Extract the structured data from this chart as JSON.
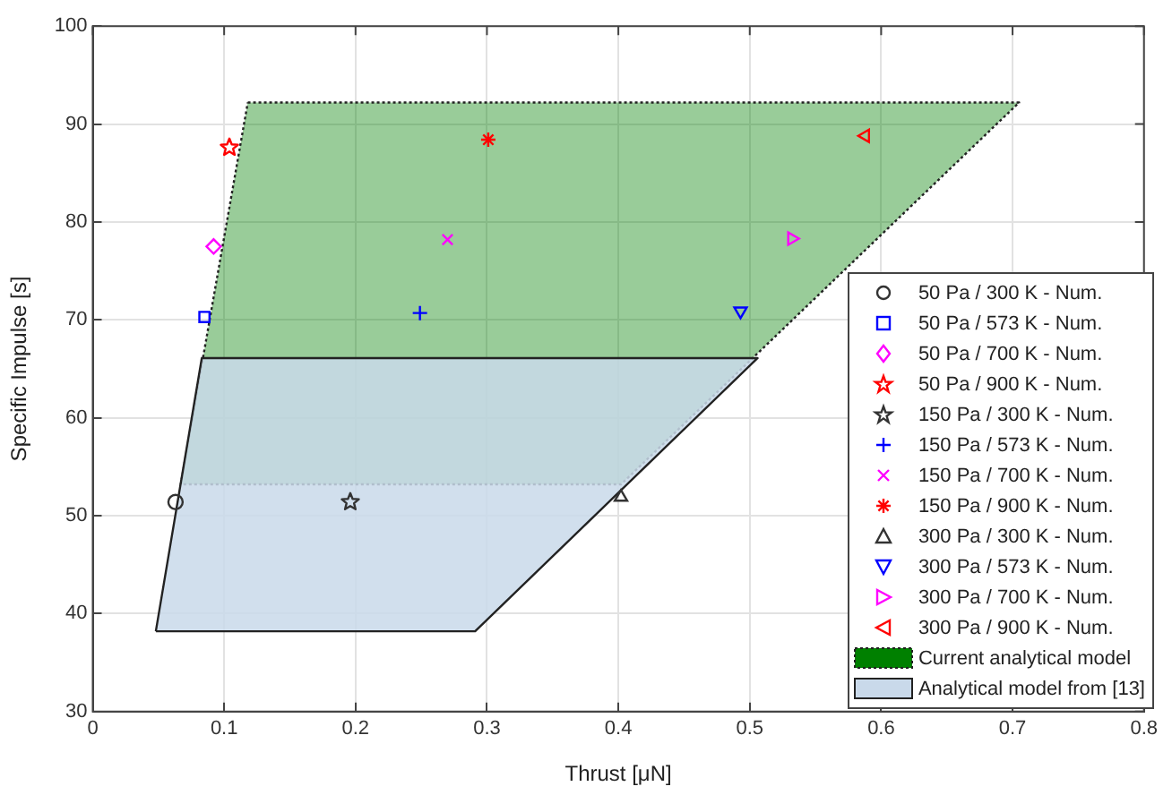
{
  "chart_data": {
    "type": "scatter",
    "xlabel": "Thrust [μN]",
    "ylabel": "Specific Impulse [s]",
    "xlim": [
      0,
      0.8
    ],
    "ylim": [
      30,
      100
    ],
    "xticks": [
      0,
      0.1,
      0.2,
      0.3,
      0.4,
      0.5,
      0.6,
      0.7,
      0.8
    ],
    "yticks": [
      30,
      40,
      50,
      60,
      70,
      80,
      90,
      100
    ],
    "grid": true,
    "legend": "bottom right",
    "series": [
      {
        "name": "50 Pa / 300 K - Num.",
        "color": "#333333",
        "marker": "circle",
        "x": [
          0.063
        ],
        "values": [
          51.4
        ]
      },
      {
        "name": "50 Pa / 573 K - Num.",
        "color": "#0000ff",
        "marker": "square",
        "x": [
          0.085
        ],
        "values": [
          70.3
        ]
      },
      {
        "name": "50 Pa / 700 K - Num.",
        "color": "#ff00ff",
        "marker": "diamond",
        "x": [
          0.092
        ],
        "values": [
          77.5
        ]
      },
      {
        "name": "50 Pa / 900 K - Num.",
        "color": "#ff0000",
        "marker": "star",
        "x": [
          0.104
        ],
        "values": [
          87.6
        ]
      },
      {
        "name": "150 Pa / 300 K - Num.",
        "color": "#333333",
        "marker": "star",
        "x": [
          0.196
        ],
        "values": [
          51.4
        ]
      },
      {
        "name": "150 Pa / 573 K - Num.",
        "color": "#0000ff",
        "marker": "plus",
        "x": [
          0.249
        ],
        "values": [
          70.7
        ]
      },
      {
        "name": "150 Pa / 700 K - Num.",
        "color": "#ff00ff",
        "marker": "x",
        "x": [
          0.27
        ],
        "values": [
          78.2
        ]
      },
      {
        "name": "150 Pa / 900 K - Num.",
        "color": "#ff0000",
        "marker": "cross",
        "x": [
          0.301
        ],
        "values": [
          88.4
        ]
      },
      {
        "name": "300 Pa / 300 K - Num.",
        "color": "#333333",
        "marker": "triangle",
        "x": [
          0.402
        ],
        "values": [
          51.9
        ]
      },
      {
        "name": "300 Pa / 573 K - Num.",
        "color": "#0000ff",
        "marker": "triangle-down",
        "x": [
          0.493
        ],
        "values": [
          70.9
        ]
      },
      {
        "name": "300 Pa / 700 K - Num.",
        "color": "#ff00ff",
        "marker": "triangle-right",
        "x": [
          0.532
        ],
        "values": [
          78.3
        ]
      },
      {
        "name": "300 Pa / 900 K - Num.",
        "color": "#ff0000",
        "marker": "triangle-left",
        "x": [
          0.588
        ],
        "values": [
          88.8
        ]
      },
      {
        "name": "Analytical model from [13]",
        "type": "area",
        "color": "#c9d9ea",
        "line_style": "solid",
        "x": [
          0.048,
          0.291,
          0.506,
          0.083,
          0.048
        ],
        "values": [
          38.2,
          38.2,
          66.1,
          66.1,
          38.2
        ]
      },
      {
        "name": "Current analytical model",
        "type": "area",
        "color": "#008000",
        "line_style": "dotted",
        "x": [
          0.118,
          0.705,
          0.402,
          0.067,
          0.118
        ],
        "values": [
          92.2,
          92.2,
          53.2,
          53.2,
          92.2
        ]
      }
    ]
  }
}
